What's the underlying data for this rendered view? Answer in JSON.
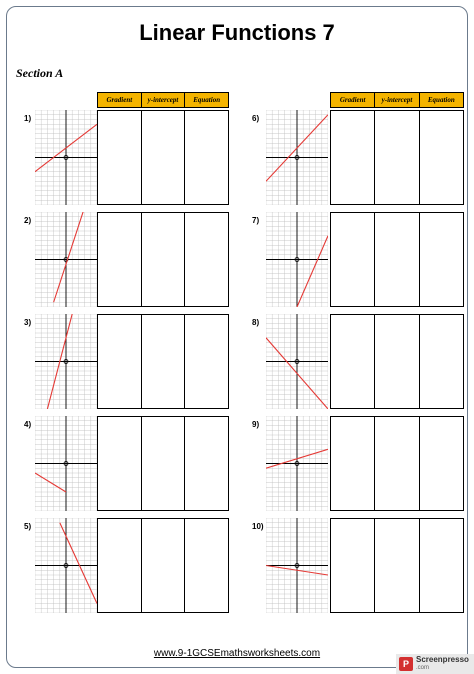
{
  "title": "Linear Functions 7",
  "section": "Section A",
  "table_headers": [
    "Gradient",
    "y-intercept",
    "Equation"
  ],
  "questions": [
    {
      "label": "1)"
    },
    {
      "label": "2)"
    },
    {
      "label": "3)"
    },
    {
      "label": "4)"
    },
    {
      "label": "5)"
    },
    {
      "label": "6)"
    },
    {
      "label": "7)"
    },
    {
      "label": "8)"
    },
    {
      "label": "9)"
    },
    {
      "label": "10)"
    }
  ],
  "footer": "www.9-1GCSEmathsworksheets.com",
  "watermark": {
    "name": "Screenpresso",
    "sub": ".com"
  },
  "colors": {
    "header_fill": "#f4b400",
    "line": "#e53935",
    "grid": "#bdbdbd"
  },
  "chart_data": [
    {
      "type": "line",
      "q": "1)",
      "ylim": [
        -10,
        10
      ],
      "xlim": [
        -5,
        5
      ],
      "points": [
        [
          -5,
          -3
        ],
        [
          5,
          7
        ]
      ]
    },
    {
      "type": "line",
      "q": "2)",
      "ylim": [
        -10,
        10
      ],
      "xlim": [
        -5,
        5
      ],
      "points": [
        [
          -2,
          -9
        ],
        [
          3,
          11
        ]
      ]
    },
    {
      "type": "line",
      "q": "3)",
      "ylim": [
        -10,
        10
      ],
      "xlim": [
        -5,
        5
      ],
      "points": [
        [
          -3,
          -10
        ],
        [
          1,
          10
        ]
      ]
    },
    {
      "type": "line",
      "q": "4)",
      "ylim": [
        -10,
        10
      ],
      "xlim": [
        -5,
        5
      ],
      "points": [
        [
          -5,
          -2
        ],
        [
          0,
          -6
        ]
      ]
    },
    {
      "type": "line",
      "q": "5)",
      "ylim": [
        -10,
        10
      ],
      "xlim": [
        -5,
        5
      ],
      "points": [
        [
          -1,
          9
        ],
        [
          5,
          -8
        ]
      ]
    },
    {
      "type": "line",
      "q": "6)",
      "ylim": [
        -10,
        10
      ],
      "xlim": [
        -5,
        5
      ],
      "points": [
        [
          -5,
          -5
        ],
        [
          5,
          9
        ]
      ]
    },
    {
      "type": "line",
      "q": "7)",
      "ylim": [
        -10,
        10
      ],
      "xlim": [
        -5,
        5
      ],
      "points": [
        [
          0,
          -10
        ],
        [
          5,
          5
        ]
      ]
    },
    {
      "type": "line",
      "q": "8)",
      "ylim": [
        -10,
        10
      ],
      "xlim": [
        -5,
        5
      ],
      "points": [
        [
          -5,
          5
        ],
        [
          5,
          -10
        ]
      ]
    },
    {
      "type": "line",
      "q": "9)",
      "ylim": [
        -10,
        10
      ],
      "xlim": [
        -5,
        5
      ],
      "points": [
        [
          -5,
          -1
        ],
        [
          5,
          3
        ]
      ]
    },
    {
      "type": "line",
      "q": "10)",
      "ylim": [
        -10,
        10
      ],
      "xlim": [
        -5,
        5
      ],
      "points": [
        [
          -5,
          0
        ],
        [
          5,
          -2
        ]
      ]
    }
  ]
}
